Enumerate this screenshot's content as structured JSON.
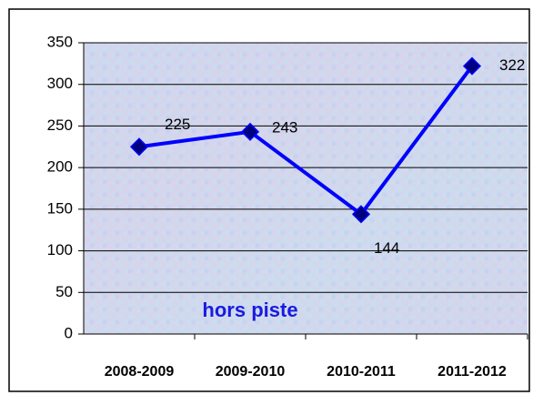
{
  "chart_data": {
    "type": "line",
    "categories": [
      "2008-2009",
      "2009-2010",
      "2010-2011",
      "2011-2012"
    ],
    "series": [
      {
        "name": "hors piste",
        "color": "#0000ff",
        "values": [
          225,
          243,
          144,
          322
        ]
      }
    ],
    "annotation": "hors piste",
    "ylim": [
      0,
      350
    ],
    "yticks": [
      0,
      50,
      100,
      150,
      200,
      250,
      300,
      350
    ],
    "grid": true
  }
}
